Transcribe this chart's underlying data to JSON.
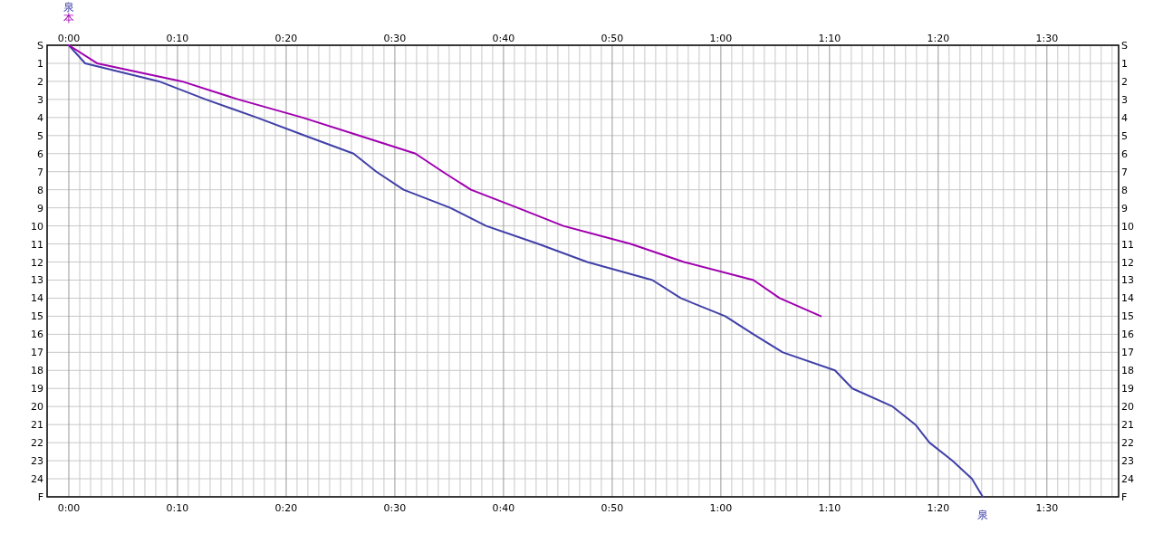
{
  "chart_data": {
    "type": "line",
    "xlim": [
      -2,
      96.6
    ],
    "x2lim": [
      -2,
      96.6
    ],
    "xticks": [
      {
        "value": 0,
        "label": "0:00"
      },
      {
        "value": 1,
        "label": null
      },
      {
        "value": 2,
        "label": null
      },
      {
        "value": 3,
        "label": null
      },
      {
        "value": 4,
        "label": null
      },
      {
        "value": 5,
        "label": null
      },
      {
        "value": 6,
        "label": null
      },
      {
        "value": 7,
        "label": null
      },
      {
        "value": 8,
        "label": null
      },
      {
        "value": 9,
        "label": null
      },
      {
        "value": 10,
        "label": "0:10"
      },
      {
        "value": 11,
        "label": null
      },
      {
        "value": 12,
        "label": null
      },
      {
        "value": 13,
        "label": null
      },
      {
        "value": 14,
        "label": null
      },
      {
        "value": 15,
        "label": null
      },
      {
        "value": 16,
        "label": null
      },
      {
        "value": 17,
        "label": null
      },
      {
        "value": 18,
        "label": null
      },
      {
        "value": 19,
        "label": null
      },
      {
        "value": 20,
        "label": "0:20"
      },
      {
        "value": 21,
        "label": null
      },
      {
        "value": 22,
        "label": null
      },
      {
        "value": 23,
        "label": null
      },
      {
        "value": 24,
        "label": null
      },
      {
        "value": 25,
        "label": null
      },
      {
        "value": 26,
        "label": null
      },
      {
        "value": 27,
        "label": null
      },
      {
        "value": 28,
        "label": null
      },
      {
        "value": 29,
        "label": null
      },
      {
        "value": 30,
        "label": "0:30"
      },
      {
        "value": 31,
        "label": null
      },
      {
        "value": 32,
        "label": null
      },
      {
        "value": 33,
        "label": null
      },
      {
        "value": 34,
        "label": null
      },
      {
        "value": 35,
        "label": null
      },
      {
        "value": 36,
        "label": null
      },
      {
        "value": 37,
        "label": null
      },
      {
        "value": 38,
        "label": null
      },
      {
        "value": 39,
        "label": null
      },
      {
        "value": 40,
        "label": "0:40"
      },
      {
        "value": 41,
        "label": null
      },
      {
        "value": 42,
        "label": null
      },
      {
        "value": 43,
        "label": null
      },
      {
        "value": 44,
        "label": null
      },
      {
        "value": 45,
        "label": null
      },
      {
        "value": 46,
        "label": null
      },
      {
        "value": 47,
        "label": null
      },
      {
        "value": 48,
        "label": null
      },
      {
        "value": 49,
        "label": null
      },
      {
        "value": 50,
        "label": "0:50"
      },
      {
        "value": 51,
        "label": null
      },
      {
        "value": 52,
        "label": null
      },
      {
        "value": 53,
        "label": null
      },
      {
        "value": 54,
        "label": null
      },
      {
        "value": 55,
        "label": null
      },
      {
        "value": 56,
        "label": null
      },
      {
        "value": 57,
        "label": null
      },
      {
        "value": 58,
        "label": null
      },
      {
        "value": 59,
        "label": null
      },
      {
        "value": 60,
        "label": "1:00"
      },
      {
        "value": 61,
        "label": null
      },
      {
        "value": 62,
        "label": null
      },
      {
        "value": 63,
        "label": null
      },
      {
        "value": 64,
        "label": null
      },
      {
        "value": 65,
        "label": null
      },
      {
        "value": 66,
        "label": null
      },
      {
        "value": 67,
        "label": null
      },
      {
        "value": 68,
        "label": null
      },
      {
        "value": 69,
        "label": null
      },
      {
        "value": 70,
        "label": "1:10"
      },
      {
        "value": 71,
        "label": null
      },
      {
        "value": 72,
        "label": null
      },
      {
        "value": 73,
        "label": null
      },
      {
        "value": 74,
        "label": null
      },
      {
        "value": 75,
        "label": null
      },
      {
        "value": 76,
        "label": null
      },
      {
        "value": 77,
        "label": null
      },
      {
        "value": 78,
        "label": null
      },
      {
        "value": 79,
        "label": null
      },
      {
        "value": 80,
        "label": "1:20"
      },
      {
        "value": 81,
        "label": null
      },
      {
        "value": 82,
        "label": null
      },
      {
        "value": 83,
        "label": null
      },
      {
        "value": 84,
        "label": null
      },
      {
        "value": 85,
        "label": null
      },
      {
        "value": 86,
        "label": null
      },
      {
        "value": 87,
        "label": null
      },
      {
        "value": 88,
        "label": null
      },
      {
        "value": 89,
        "label": null
      },
      {
        "value": 90,
        "label": "1:30"
      },
      {
        "value": 91,
        "label": null
      },
      {
        "value": 92,
        "label": null
      },
      {
        "value": 93,
        "label": null
      },
      {
        "value": 94,
        "label": null
      },
      {
        "value": 95,
        "label": null
      },
      {
        "value": 96,
        "label": null
      }
    ],
    "x2ticks": [
      {
        "value": 0,
        "label": "0:00"
      },
      {
        "value": 10,
        "label": "0:10"
      },
      {
        "value": 20,
        "label": "0:20"
      },
      {
        "value": 30,
        "label": "0:30"
      },
      {
        "value": 40,
        "label": "0:40"
      },
      {
        "value": 50,
        "label": "0:50"
      },
      {
        "value": 60,
        "label": "1:00"
      },
      {
        "value": 70,
        "label": "1:10"
      },
      {
        "value": 80,
        "label": "1:20"
      },
      {
        "value": 90,
        "label": "1:30"
      }
    ],
    "ylim": [
      25,
      0
    ],
    "y2lim": [
      25,
      0
    ],
    "yticks": [
      {
        "value": 0,
        "label": "S"
      },
      1,
      2,
      3,
      4,
      5,
      6,
      7,
      8,
      9,
      10,
      11,
      12,
      13,
      14,
      15,
      16,
      17,
      18,
      19,
      20,
      21,
      22,
      23,
      24,
      {
        "value": 25,
        "label": "F"
      }
    ],
    "y2ticks": [
      {
        "value": 0,
        "label": "S"
      },
      1,
      2,
      3,
      4,
      5,
      6,
      7,
      8,
      9,
      10,
      11,
      12,
      13,
      14,
      15,
      16,
      17,
      18,
      19,
      20,
      21,
      22,
      23,
      24,
      {
        "value": 25,
        "label": "F"
      }
    ],
    "grid": true,
    "series": [
      {
        "name": "泉",
        "color": "#4040a8",
        "x": [
          0,
          1.5,
          8.3,
          12.6,
          17.3,
          21.7,
          26.2,
          28.3,
          30.8,
          35.1,
          38.4,
          43.2,
          47.7,
          53.7,
          56.3,
          60.4,
          63.0,
          65.7,
          70.5,
          72.1,
          75.8,
          77.9,
          79.2,
          81.3,
          83.1,
          84.1
        ],
        "values": [
          0,
          1,
          2,
          3,
          4,
          5,
          6,
          7,
          8,
          9,
          10,
          11,
          12,
          13,
          14,
          15,
          16,
          17,
          18,
          19,
          20,
          21,
          22,
          23,
          24,
          25
        ]
      },
      {
        "name": "本",
        "color": "#a000b0",
        "x": [
          0,
          2.6,
          10.4,
          15.6,
          21.5,
          26.7,
          31.9,
          34.4,
          37.0,
          41.3,
          45.5,
          51.7,
          56.6,
          63.0,
          65.4,
          69.2
        ],
        "values": [
          0,
          1,
          2,
          3,
          4,
          5,
          6,
          7,
          8,
          9,
          10,
          11,
          12,
          13,
          14,
          15
        ]
      }
    ]
  }
}
